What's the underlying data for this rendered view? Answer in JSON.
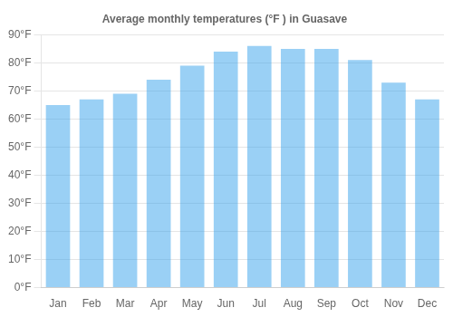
{
  "chart_data": {
    "type": "bar",
    "title": "Average monthly temperatures (°F ) in Guasave",
    "categories": [
      "Jan",
      "Feb",
      "Mar",
      "Apr",
      "May",
      "Jun",
      "Jul",
      "Aug",
      "Sep",
      "Oct",
      "Nov",
      "Dec"
    ],
    "values": [
      65,
      67,
      69,
      74,
      79,
      84,
      86,
      85,
      85,
      81,
      73,
      67
    ],
    "ylim": [
      0,
      90
    ],
    "yticks": [
      {
        "value": 0,
        "label": "0°F"
      },
      {
        "value": 10,
        "label": "10°F"
      },
      {
        "value": 20,
        "label": "20°F"
      },
      {
        "value": 30,
        "label": "30°F"
      },
      {
        "value": 40,
        "label": "40°F"
      },
      {
        "value": 50,
        "label": "50°F"
      },
      {
        "value": 60,
        "label": "60°F"
      },
      {
        "value": 70,
        "label": "70°F"
      },
      {
        "value": 80,
        "label": "80°F"
      },
      {
        "value": 90,
        "label": "90°F"
      }
    ],
    "grid": true
  }
}
